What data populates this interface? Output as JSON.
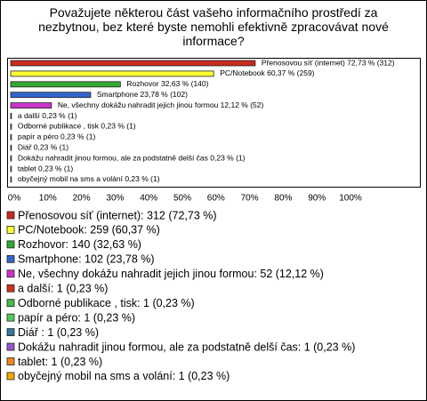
{
  "chart_data": {
    "type": "bar",
    "orientation": "horizontal",
    "title": "Považujete některou část vašeho informačního prostředí za nezbytnou, bez které byste nemohli efektivně zpracovávat nové informace?",
    "values": [
      72.73,
      60.37,
      32.63,
      23.78,
      12.12,
      0.23,
      0.23,
      0.23,
      0.23,
      0.23,
      0.23,
      0.23
    ],
    "value_labels": [
      "Přenosovou síť (internet) 72,73 % (312)",
      "PC/Notebook 60,37 % (259)",
      "Rozhovor 32,63 % (140)",
      "Smartphone 23,78 % (102)",
      "Ne, všechny dokážu nahradit jejich jinou formou 12,12 % (52)",
      "a další 0,23 % (1)",
      "Odborné publikace , tisk 0,23 % (1)",
      "papír a péro 0,23 % (1)",
      "Diář  0,23 % (1)",
      "Dokážu nahradit jinou formou, ale za podstatně delší čas 0,23 % (1)",
      "tablet 0,23 % (1)",
      "obyčejný mobil na sms a volání 0,23 % (1)"
    ],
    "colors": [
      "#cc2a1e",
      "#ffff33",
      "#33aa33",
      "#3366cc",
      "#cc33cc",
      "#d03020",
      "#44bb44",
      "#55cc55",
      "#337799",
      "#9955cc",
      "#ee8822",
      "#eeaa00"
    ],
    "legend_labels": [
      "Přenosovou síť (internet): 312 (72,73 %)",
      "PC/Notebook: 259 (60,37 %)",
      "Rozhovor: 140 (32,63 %)",
      "Smartphone: 102 (23,78 %)",
      "Ne, všechny dokážu nahradit jejich jinou formou: 52 (12,12 %)",
      "a další: 1 (0,23 %)",
      "Odborné publikace , tisk: 1 (0,23 %)",
      "papír a péro: 1 (0,23 %)",
      "Diář : 1 (0,23 %)",
      "Dokážu nahradit jinou formou, ale za podstatně delší čas: 1 (0,23 %)",
      "tablet: 1 (0,23 %)",
      "obyčejný mobil na sms a volání: 1 (0,23 %)"
    ],
    "xlim": [
      0,
      100
    ],
    "xticks": [
      {
        "value": 0,
        "label": "0%"
      },
      {
        "value": 10,
        "label": "10%"
      },
      {
        "value": 20,
        "label": "20%"
      },
      {
        "value": 30,
        "label": "30%"
      },
      {
        "value": 40,
        "label": "40%"
      },
      {
        "value": 50,
        "label": "50%"
      },
      {
        "value": 60,
        "label": "60%"
      },
      {
        "value": 70,
        "label": "70%"
      },
      {
        "value": 80,
        "label": "80%"
      },
      {
        "value": 90,
        "label": "90%"
      },
      {
        "value": 100,
        "label": "100%"
      }
    ]
  }
}
